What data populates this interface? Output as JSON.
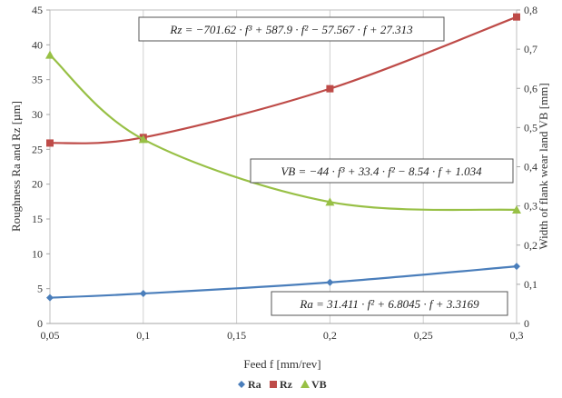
{
  "chart_data": {
    "type": "line",
    "xlabel": "Feed f [mm/rev]",
    "ylabel_left": "Roughness Ra and Rz [µm]",
    "ylabel_right": "Width of flank wear land VB [mm]",
    "xlim": [
      0.05,
      0.3
    ],
    "ylim_left": [
      0,
      45
    ],
    "ylim_right": [
      0,
      0.8
    ],
    "x_ticks": [
      "0,05",
      "0,1",
      "0,15",
      "0,2",
      "0,25",
      "0,3"
    ],
    "y_left_ticks": [
      "0",
      "5",
      "10",
      "15",
      "20",
      "25",
      "30",
      "35",
      "40",
      "45"
    ],
    "y_right_ticks": [
      "0",
      "0,1",
      "0,2",
      "0,3",
      "0,4",
      "0,5",
      "0,6",
      "0,7",
      "0,8"
    ],
    "grid": "vertical",
    "legend_position": "bottom",
    "x": [
      0.05,
      0.1,
      0.2,
      0.3
    ],
    "series": [
      {
        "name": "Ra",
        "axis": "left",
        "color": "#4a7ebb",
        "marker": "diamond",
        "values": [
          3.7,
          4.3,
          5.9,
          8.2
        ]
      },
      {
        "name": "Rz",
        "axis": "left",
        "color": "#be4b48",
        "marker": "square",
        "values": [
          25.9,
          26.7,
          33.7,
          44.0
        ]
      },
      {
        "name": "VB",
        "axis": "right",
        "color": "#98c046",
        "marker": "triangle",
        "values": [
          0.685,
          0.47,
          0.31,
          0.29
        ]
      }
    ],
    "annotations": [
      "Rz = −701.62 · f³ + 587.9 · f² − 57.567 · f + 27.313",
      "VB = −44 · f³ + 33.4 · f² − 8.54 · f + 1.034",
      "Ra = 31.411 · f² + 6.8045 · f + 3.3169"
    ]
  }
}
